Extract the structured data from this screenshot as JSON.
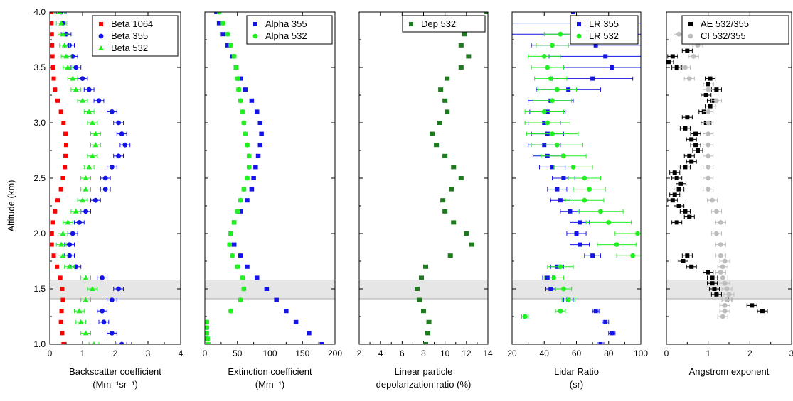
{
  "colors": {
    "red": "#ff0000",
    "blue": "#1414e6",
    "green": "#22ee22",
    "darkgreen": "#1f7a1f",
    "black": "#000000",
    "grey": "#bdbdbd",
    "band": "#e6e6e6"
  },
  "shaded_band": {
    "y": [
      1.41,
      1.58
    ]
  },
  "chart_data": [
    {
      "type": "scatter",
      "ylabel": "Altitude (km)",
      "xlabel_line1": "Backscatter coefficient",
      "xlabel_line2": "(Mm⁻¹sr⁻¹)",
      "xlim": [
        0,
        4
      ],
      "ylim": [
        1.0,
        4.0
      ],
      "xticks": [
        "0",
        "1",
        "2",
        "3",
        "4"
      ],
      "yticks": [
        "1.0",
        "1.5",
        "2.0",
        "2.5",
        "3.0",
        "3.5",
        "4.0"
      ],
      "legend_position": "top-right",
      "series": [
        {
          "name": "Beta 1064",
          "color": "red",
          "marker": "square",
          "y": [
            1.0,
            1.1,
            1.2,
            1.3,
            1.4,
            1.5,
            1.6,
            1.7,
            1.8,
            1.9,
            2.0,
            2.1,
            2.2,
            2.3,
            2.4,
            2.5,
            2.6,
            2.7,
            2.8,
            2.9,
            3.0,
            3.1,
            3.2,
            3.3,
            3.4,
            3.5,
            3.6,
            3.7,
            3.8,
            3.9,
            4.0
          ],
          "x": [
            0.42,
            0.38,
            0.34,
            0.36,
            0.4,
            0.38,
            0.32,
            0.22,
            0.12,
            0.06,
            0.06,
            0.1,
            0.16,
            0.24,
            0.34,
            0.4,
            0.46,
            0.48,
            0.5,
            0.48,
            0.42,
            0.34,
            0.24,
            0.16,
            0.12,
            0.1,
            0.08,
            0.07,
            0.06,
            0.05,
            0.05
          ]
        },
        {
          "name": "Beta 355",
          "color": "blue",
          "marker": "circle",
          "y": [
            1.0,
            1.1,
            1.2,
            1.3,
            1.4,
            1.5,
            1.6,
            1.7,
            1.8,
            1.9,
            2.0,
            2.1,
            2.2,
            2.3,
            2.4,
            2.5,
            2.6,
            2.7,
            2.8,
            2.9,
            3.0,
            3.1,
            3.2,
            3.3,
            3.4,
            3.5,
            3.6,
            3.7,
            3.8,
            3.9,
            4.0
          ],
          "x": [
            2.2,
            1.9,
            1.65,
            1.6,
            1.9,
            2.1,
            1.6,
            0.8,
            0.6,
            0.6,
            0.7,
            0.9,
            1.1,
            1.4,
            1.7,
            1.7,
            1.9,
            2.1,
            2.3,
            2.2,
            2.1,
            1.9,
            1.5,
            1.2,
            1.0,
            0.8,
            0.7,
            0.6,
            0.5,
            0.4,
            0.35
          ],
          "xerr": 0.15
        },
        {
          "name": "Beta 532",
          "color": "green",
          "marker": "triangle",
          "y": [
            1.0,
            1.1,
            1.2,
            1.3,
            1.4,
            1.5,
            1.6,
            1.7,
            1.8,
            1.9,
            2.0,
            2.1,
            2.2,
            2.3,
            2.4,
            2.5,
            2.6,
            2.7,
            2.8,
            2.9,
            3.0,
            3.1,
            3.2,
            3.3,
            3.4,
            3.5,
            3.6,
            3.7,
            3.8,
            3.9,
            4.0
          ],
          "x": [
            1.35,
            1.1,
            0.95,
            0.9,
            1.1,
            1.3,
            1.1,
            0.6,
            0.4,
            0.35,
            0.4,
            0.55,
            0.8,
            1.0,
            1.1,
            1.1,
            1.2,
            1.3,
            1.4,
            1.4,
            1.3,
            1.2,
            1.0,
            0.8,
            0.7,
            0.55,
            0.5,
            0.45,
            0.4,
            0.35,
            0.3
          ],
          "xerr": 0.15
        }
      ]
    },
    {
      "type": "scatter",
      "xlabel_line1": "Extinction coefficient",
      "xlabel_line2": "(Mm⁻¹)",
      "xlim": [
        0,
        200
      ],
      "ylim": [
        1.0,
        4.0
      ],
      "xticks": [
        "0",
        "50",
        "100",
        "150",
        "200"
      ],
      "legend_position": "top-right",
      "series": [
        {
          "name": "Alpha 355",
          "color": "blue",
          "marker": "square",
          "y": [
            1.0,
            1.1,
            1.2,
            1.3,
            1.4,
            1.5,
            1.6,
            1.7,
            1.8,
            1.9,
            2.0,
            2.1,
            2.2,
            2.3,
            2.4,
            2.5,
            2.6,
            2.7,
            2.8,
            2.9,
            3.0,
            3.1,
            3.2,
            3.3,
            3.4,
            3.5,
            3.6,
            3.7,
            3.8,
            3.9,
            4.0
          ],
          "x": [
            180,
            160,
            140,
            125,
            110,
            95,
            80,
            65,
            55,
            45,
            40,
            45,
            55,
            65,
            72,
            75,
            78,
            82,
            85,
            87,
            85,
            80,
            72,
            62,
            55,
            48,
            42,
            35,
            28,
            22,
            18
          ],
          "xerr": 3
        },
        {
          "name": "Alpha 532",
          "color": "green",
          "marker": "circle",
          "y": [
            1.0,
            1.05,
            1.1,
            1.15,
            1.2,
            1.3,
            1.4,
            1.5,
            1.6,
            1.7,
            1.8,
            1.9,
            2.0,
            2.1,
            2.2,
            2.3,
            2.4,
            2.5,
            2.6,
            2.7,
            2.8,
            2.9,
            3.0,
            3.1,
            3.2,
            3.3,
            3.4,
            3.5,
            3.6,
            3.7,
            3.8,
            3.9,
            4.0
          ],
          "x": [
            5,
            4,
            3,
            3,
            3,
            40,
            55,
            60,
            58,
            50,
            42,
            38,
            40,
            45,
            50,
            55,
            60,
            65,
            68,
            68,
            65,
            62,
            60,
            58,
            55,
            52,
            50,
            48,
            45,
            40,
            35,
            28,
            22
          ],
          "xerr": 3
        }
      ]
    },
    {
      "type": "scatter",
      "xlabel_line1": "Linear particle",
      "xlabel_line2": "depolarization ratio (%)",
      "xlim": [
        2,
        14
      ],
      "ylim": [
        1.0,
        4.0
      ],
      "xticks": [
        "2",
        "4",
        "6",
        "8",
        "10",
        "12",
        "14"
      ],
      "legend_position": "top-right",
      "series": [
        {
          "name": "Dep 532",
          "color": "darkgreen",
          "marker": "square",
          "y": [
            1.0,
            1.1,
            1.2,
            1.3,
            1.4,
            1.5,
            1.6,
            1.7,
            1.8,
            1.9,
            2.0,
            2.1,
            2.2,
            2.3,
            2.4,
            2.5,
            2.6,
            2.7,
            2.8,
            2.9,
            3.0,
            3.1,
            3.2,
            3.3,
            3.4,
            3.5,
            3.6,
            3.7,
            3.8,
            3.9,
            4.0
          ],
          "x": [
            8.2,
            8.4,
            8.5,
            8.0,
            7.6,
            7.4,
            7.8,
            8.2,
            10.5,
            12.5,
            12.0,
            10.8,
            10.0,
            9.8,
            10.6,
            11.5,
            10.8,
            10.0,
            9.2,
            8.8,
            9.5,
            10.2,
            10.0,
            9.6,
            10.2,
            11.5,
            12.2,
            11.5,
            11.8,
            13.5,
            13.9
          ],
          "xerr": 0.2
        }
      ]
    },
    {
      "type": "scatter",
      "xlabel_line1": "Lidar Ratio",
      "xlabel_line2": "(sr)",
      "xlim": [
        20,
        100
      ],
      "ylim": [
        1.0,
        4.0
      ],
      "xticks": [
        "20",
        "40",
        "60",
        "80",
        "100"
      ],
      "legend_position": "top-right",
      "series": [
        {
          "name": "LR 355",
          "color": "blue",
          "marker": "square",
          "y": [
            1.0,
            1.1,
            1.2,
            1.3,
            1.4,
            1.5,
            1.6,
            1.7,
            1.8,
            1.9,
            2.0,
            2.1,
            2.2,
            2.3,
            2.4,
            2.5,
            2.6,
            2.7,
            2.8,
            2.9,
            3.0,
            3.1,
            3.2,
            3.3,
            3.4,
            3.5,
            3.6,
            3.7,
            3.8,
            3.9,
            4.0
          ],
          "xerr": [
            2,
            2,
            2,
            2,
            3,
            3,
            3,
            4,
            5,
            6,
            6,
            6,
            6,
            6,
            6,
            7,
            8,
            9,
            10,
            10,
            10,
            11,
            14,
            20,
            25,
            30,
            35,
            40,
            50,
            60,
            70
          ],
          "x": [
            75,
            82,
            78,
            72,
            55,
            44,
            42,
            48,
            70,
            62,
            60,
            62,
            56,
            50,
            48,
            52,
            45,
            42,
            40,
            42,
            40,
            42,
            44,
            55,
            70,
            82,
            78,
            72,
            65,
            62,
            58
          ]
        },
        {
          "name": "LR 532",
          "color": "green",
          "marker": "circle",
          "y": [
            1.25,
            1.3,
            1.4,
            1.5,
            1.6,
            1.7,
            1.8,
            1.9,
            2.0,
            2.1,
            2.2,
            2.3,
            2.4,
            2.5,
            2.6,
            2.7,
            2.8,
            2.9,
            3.0,
            3.1,
            3.2,
            3.3,
            3.4,
            3.5,
            3.6,
            3.7,
            3.8
          ],
          "xerr": [
            2,
            3,
            4,
            5,
            6,
            8,
            10,
            12,
            14,
            14,
            14,
            12,
            10,
            10,
            12,
            14,
            16,
            16,
            14,
            12,
            12,
            12,
            10,
            10,
            10,
            10,
            10
          ],
          "x": [
            28,
            50,
            55,
            52,
            46,
            50,
            95,
            85,
            98,
            80,
            75,
            65,
            68,
            65,
            58,
            52,
            48,
            45,
            42,
            40,
            45,
            48,
            44,
            42,
            40,
            45,
            50
          ]
        }
      ]
    },
    {
      "type": "scatter",
      "xlabel_line1": "Angstrom exponent",
      "xlabel_line2": "",
      "xlim": [
        0,
        3
      ],
      "ylim": [
        1.0,
        4.0
      ],
      "xticks": [
        "0",
        "1",
        "2",
        "3"
      ],
      "legend_position": "top-right",
      "series": [
        {
          "name": "AE 532/355",
          "color": "black",
          "marker": "square",
          "y": [
            1.3,
            1.35,
            1.4,
            1.45,
            1.5,
            1.55,
            1.6,
            1.65,
            1.7,
            1.75,
            1.8,
            2.1,
            2.15,
            2.2,
            2.25,
            2.3,
            2.35,
            2.4,
            2.45,
            2.5,
            2.55,
            2.6,
            2.65,
            2.7,
            2.75,
            2.8,
            2.85,
            2.9,
            2.95,
            3.0,
            3.05,
            3.1,
            3.15,
            3.2,
            3.25,
            3.3,
            3.35,
            3.4,
            3.5,
            3.55,
            3.6,
            3.65
          ],
          "x": [
            2.3,
            2.05,
            1.45,
            1.2,
            1.15,
            1.1,
            1.1,
            1.0,
            0.6,
            0.4,
            0.5,
            0.25,
            0.55,
            0.45,
            0.3,
            0.15,
            0.2,
            0.3,
            0.35,
            0.25,
            0.2,
            0.45,
            0.6,
            0.55,
            0.75,
            0.7,
            0.6,
            0.7,
            0.45,
            0.95,
            0.5,
            0.9,
            1.05,
            1.1,
            0.95,
            1.2,
            1.0,
            1.05,
            0.25,
            0.05,
            0.15,
            0.5
          ],
          "xerr": 0.12
        },
        {
          "name": "CI 532/355",
          "color": "grey",
          "marker": "circle",
          "y": [
            1.25,
            1.3,
            1.35,
            1.4,
            1.45,
            1.5,
            1.55,
            1.6,
            1.65,
            1.7,
            1.75,
            1.8,
            1.9,
            2.0,
            2.1,
            2.2,
            2.3,
            2.4,
            2.5,
            2.6,
            2.7,
            2.8,
            2.9,
            3.0,
            3.1,
            3.2,
            3.3,
            3.4,
            3.5,
            3.6,
            3.7,
            3.8
          ],
          "x": [
            1.35,
            1.4,
            1.4,
            1.45,
            1.5,
            1.45,
            1.4,
            1.35,
            1.3,
            1.35,
            1.4,
            1.3,
            1.3,
            1.2,
            1.3,
            1.2,
            1.1,
            1.0,
            1.0,
            1.0,
            1.0,
            1.0,
            1.0,
            1.0,
            1.0,
            1.2,
            1.0,
            0.55,
            0.45,
            0.65,
            0.75,
            0.3
          ],
          "xerr": 0.12
        }
      ]
    }
  ]
}
